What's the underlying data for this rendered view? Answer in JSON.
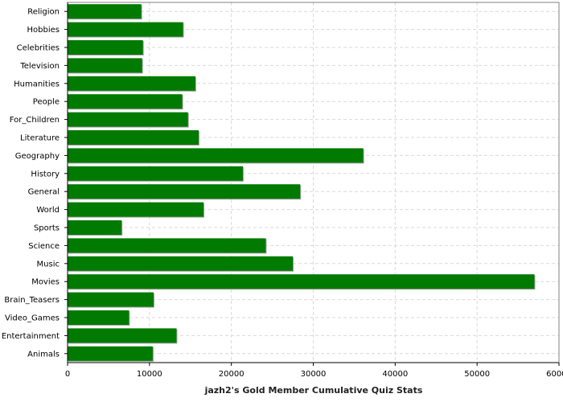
{
  "chart_data": {
    "type": "bar",
    "orientation": "horizontal",
    "title": "jazh2's Gold Member Cumulative Quiz Stats",
    "xlabel": "jazh2's Gold Member Cumulative Quiz Stats",
    "ylabel": "",
    "xlim": [
      0,
      60000
    ],
    "x_ticks": [
      0,
      10000,
      20000,
      30000,
      40000,
      50000,
      60000
    ],
    "x_tick_labels": [
      "0",
      "10000",
      "20000",
      "30000",
      "40000",
      "50000",
      "60000"
    ],
    "grid": true,
    "legend": "none",
    "categories": [
      "Religion",
      "Hobbies",
      "Celebrities",
      "Television",
      "Humanities",
      "People",
      "For_Children",
      "Literature",
      "Geography",
      "History",
      "General",
      "World",
      "Sports",
      "Science",
      "Music",
      "Movies",
      "Brain_Teasers",
      "Video_Games",
      "Entertainment",
      "Animals"
    ],
    "values": [
      9000,
      14100,
      9200,
      9100,
      15600,
      14000,
      14700,
      16000,
      36100,
      21400,
      28400,
      16600,
      6600,
      24200,
      27500,
      57000,
      10500,
      7500,
      13300,
      10400
    ],
    "colors": {
      "bar": "#007a00",
      "bar_shadow": "#a0a0a0",
      "grid": "#d9d9d9",
      "axis": "#000000"
    }
  }
}
